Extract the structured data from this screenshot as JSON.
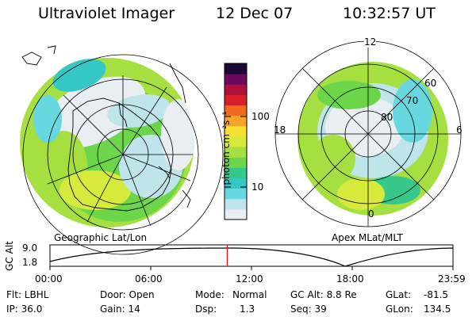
{
  "header": {
    "title": "Ultraviolet Imager",
    "date": "12 Dec 07",
    "time": "10:32:57 UT"
  },
  "left_map": {
    "caption": "Geographic Lat/Lon"
  },
  "right_map": {
    "caption": "Apex MLat/MLT",
    "mlt_labels": [
      "12",
      "18",
      "6",
      "0"
    ],
    "lat_labels": [
      "60",
      "70",
      "80"
    ]
  },
  "colorbar": {
    "unit_label": "photon cm⁻²s⁻¹",
    "tick_labels": [
      "100",
      "10"
    ],
    "colors": [
      "#e8eef2",
      "#bfe4ea",
      "#67d8df",
      "#35c6c6",
      "#35c88a",
      "#6cd54a",
      "#a6e040",
      "#d6ea3c",
      "#f7e12e",
      "#f7a32a",
      "#f06a1f",
      "#d8202a",
      "#b0103c",
      "#6a0a5a",
      "#1a0838"
    ]
  },
  "altitude_plot": {
    "ylabel": "GC Alt",
    "y_ticks": [
      "9.0",
      "1.8"
    ],
    "x_ticks": [
      "00:00",
      "06:00",
      "12:00",
      "18:00",
      "23:59"
    ],
    "current_time_marker": "10:32:57",
    "marker_color": "#ff0000"
  },
  "footer": {
    "row1": {
      "filter": "Flt: LBHL",
      "door": "Door: Open",
      "mode_label": "Mode:",
      "mode_value": "Normal",
      "gc_alt": "GC Alt: 8.8 Re",
      "glat_label": "GLat:",
      "glat_value": "-81.5"
    },
    "row2": {
      "ip": "IP: 36.0",
      "gain": "Gain: 14",
      "dsp_label": "Dsp:",
      "dsp_value": "1.3",
      "seq": "Seq: 39",
      "glon_label": "GLon:",
      "glon_value": "134.5"
    }
  }
}
